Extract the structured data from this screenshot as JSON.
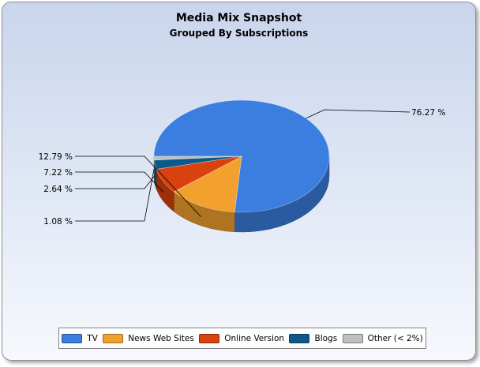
{
  "chart_data": {
    "type": "pie",
    "title": "Media Mix Snapshot",
    "subtitle": "Grouped By Subscriptions",
    "slices": [
      {
        "name": "TV",
        "value": 76.27,
        "label": "76.27 %",
        "color": "#3b7ee0"
      },
      {
        "name": "News Web Sites",
        "value": 12.79,
        "label": "12.79 %",
        "color": "#f2a12e"
      },
      {
        "name": "Online Version",
        "value": 7.22,
        "label": "7.22 %",
        "color": "#d9410e"
      },
      {
        "name": "Blogs",
        "value": 2.64,
        "label": "2.64 %",
        "color": "#0d5a8a"
      },
      {
        "name": "Other (< 2%)",
        "value": 1.08,
        "label": "1.08 %",
        "color": "#bfbfbf"
      }
    ],
    "legend_position": "bottom",
    "style": "3d-pie"
  }
}
